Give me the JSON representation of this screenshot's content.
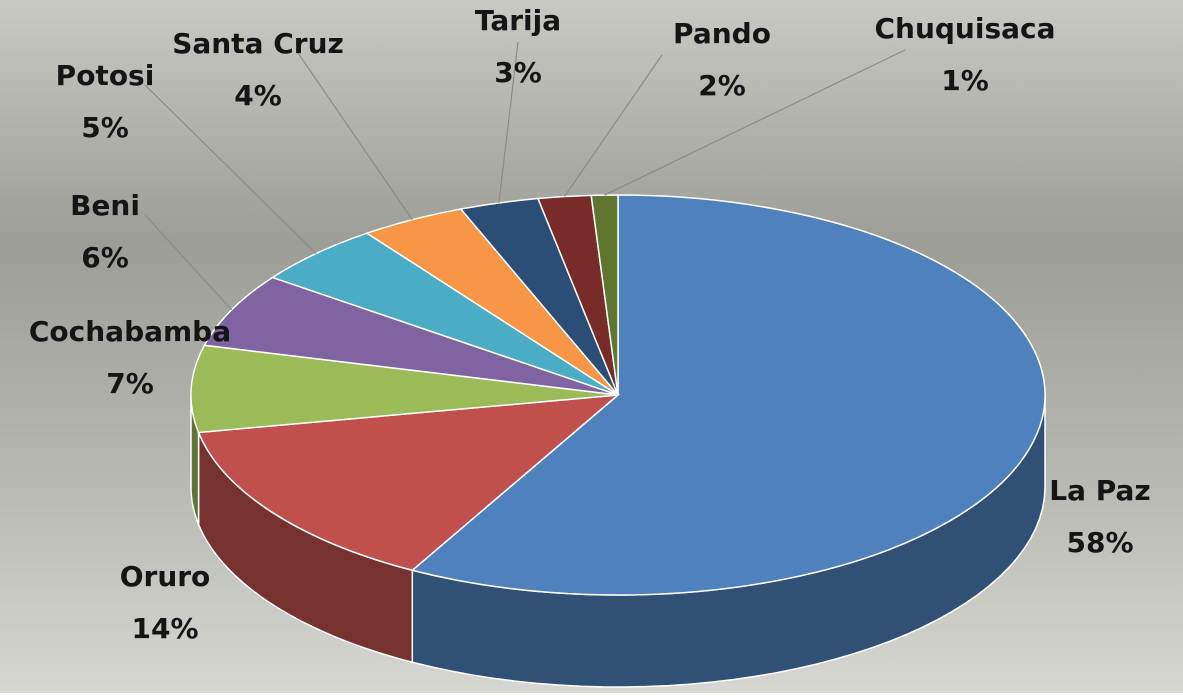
{
  "chart_data": {
    "type": "pie3d",
    "categories": [
      "La Paz",
      "Oruro",
      "Cochabamba",
      "Beni",
      "Potosi",
      "Santa Cruz",
      "Tarija",
      "Pando",
      "Chuquisaca"
    ],
    "values": [
      58,
      14,
      7,
      6,
      5,
      4,
      3,
      2,
      1
    ],
    "value_labels": [
      "58%",
      "14%",
      "7%",
      "6%",
      "5%",
      "4%",
      "3%",
      "2%",
      "1%"
    ],
    "colors": [
      "#4f81bd",
      "#c0504d",
      "#9bbb59",
      "#8064a2",
      "#4bacc6",
      "#f79646",
      "#2c4d75",
      "#772c2a",
      "#5f7530"
    ]
  }
}
